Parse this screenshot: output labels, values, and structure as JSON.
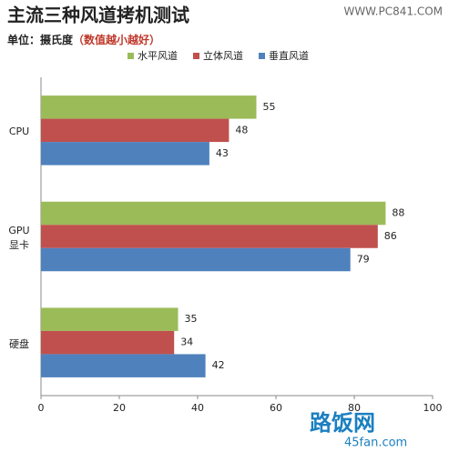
{
  "chart_data": {
    "type": "bar",
    "orientation": "horizontal",
    "title": "主流三种风道拷机测试",
    "source": "WWW.PC841.COM",
    "subtitle": "单位：摄氏度",
    "subtitle_note": "（数值越小越好）",
    "watermark": [
      "路饭网",
      "45fan.com"
    ],
    "categories": [
      "CPU",
      "GPU\n显卡",
      "硬盘"
    ],
    "series": [
      {
        "name": "水平风道",
        "color": "#9bbb59",
        "values": [
          55,
          88,
          35
        ]
      },
      {
        "name": "立体风道",
        "color": "#c0504d",
        "values": [
          48,
          86,
          34
        ]
      },
      {
        "name": "垂直风道",
        "color": "#4f81bd",
        "values": [
          43,
          79,
          42
        ]
      }
    ],
    "xlim": [
      0,
      100
    ],
    "xticks": [
      0,
      20,
      40,
      60,
      80,
      100
    ],
    "grid": false,
    "legend": "top"
  }
}
